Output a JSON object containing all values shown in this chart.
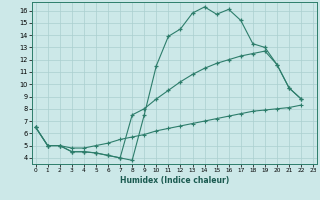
{
  "xlabel": "Humidex (Indice chaleur)",
  "bg_color": "#cce8e8",
  "line_color": "#2d7d6b",
  "grid_color": "#aacfcf",
  "line1_x": [
    0,
    1,
    2,
    3,
    4,
    5,
    6,
    7,
    8,
    9,
    10,
    11,
    12,
    13,
    14,
    15,
    16,
    17,
    18,
    19,
    20,
    21,
    22
  ],
  "line1_y": [
    6.5,
    5.0,
    5.0,
    4.5,
    4.5,
    4.4,
    4.2,
    4.0,
    3.8,
    7.5,
    11.5,
    13.9,
    14.5,
    15.8,
    16.3,
    15.7,
    16.1,
    15.2,
    13.3,
    13.0,
    11.6,
    9.7,
    8.8
  ],
  "line2_x": [
    0,
    1,
    2,
    3,
    4,
    5,
    6,
    7,
    8,
    9,
    10,
    11,
    12,
    13,
    14,
    15,
    16,
    17,
    18,
    19,
    20,
    21,
    22
  ],
  "line2_y": [
    6.5,
    5.0,
    5.0,
    4.5,
    4.5,
    4.4,
    4.2,
    4.0,
    7.5,
    8.0,
    8.8,
    9.5,
    10.2,
    10.8,
    11.3,
    11.7,
    12.0,
    12.3,
    12.5,
    12.7,
    11.6,
    9.7,
    8.8
  ],
  "line3_x": [
    0,
    1,
    2,
    3,
    4,
    5,
    6,
    7,
    8,
    9,
    10,
    11,
    12,
    13,
    14,
    15,
    16,
    17,
    18,
    19,
    20,
    21,
    22
  ],
  "line3_y": [
    6.5,
    5.0,
    5.0,
    4.8,
    4.8,
    5.0,
    5.2,
    5.5,
    5.7,
    5.9,
    6.2,
    6.4,
    6.6,
    6.8,
    7.0,
    7.2,
    7.4,
    7.6,
    7.8,
    7.9,
    8.0,
    8.1,
    8.3
  ],
  "xlim": [
    -0.3,
    23.3
  ],
  "ylim": [
    3.5,
    16.7
  ],
  "xticks": [
    0,
    1,
    2,
    3,
    4,
    5,
    6,
    7,
    8,
    9,
    10,
    11,
    12,
    13,
    14,
    15,
    16,
    17,
    18,
    19,
    20,
    21,
    22,
    23
  ],
  "yticks": [
    4,
    5,
    6,
    7,
    8,
    9,
    10,
    11,
    12,
    13,
    14,
    15,
    16
  ]
}
